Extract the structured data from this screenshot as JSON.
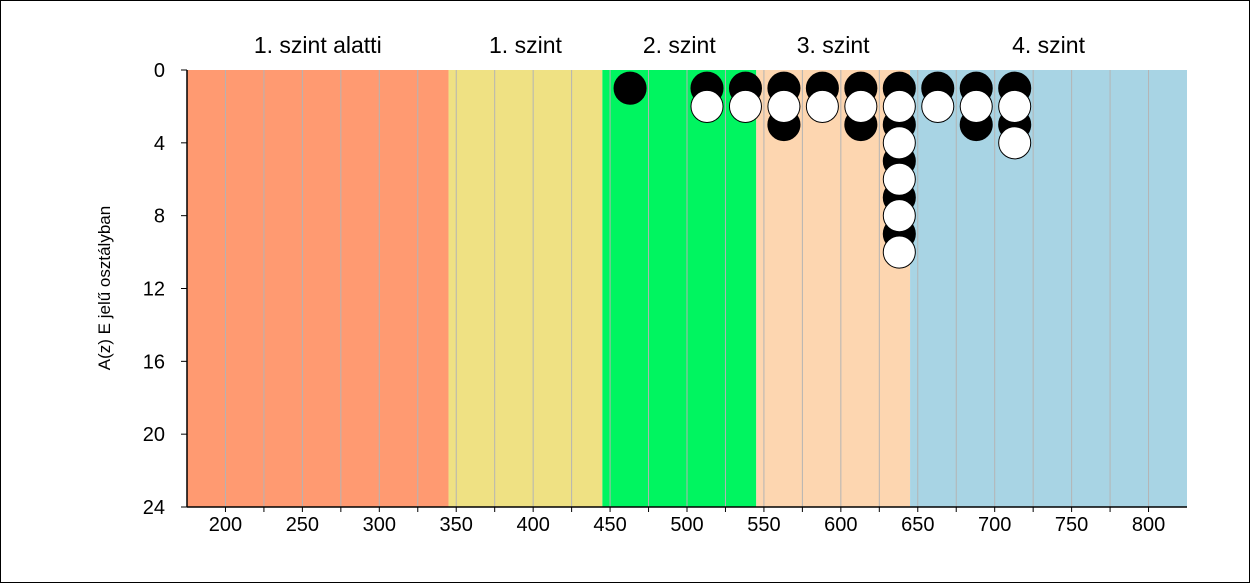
{
  "chart_data": {
    "type": "scatter",
    "title": "",
    "xlabel": "",
    "ylabel": "A(z) E jelű osztályban",
    "xlim": [
      175,
      825
    ],
    "ylim": [
      24,
      0
    ],
    "grid": true,
    "x_ticks": [
      200,
      250,
      300,
      350,
      400,
      450,
      500,
      550,
      600,
      650,
      700,
      750,
      800
    ],
    "y_ticks": [
      0,
      4,
      8,
      12,
      16,
      20,
      24
    ],
    "level_bands": [
      {
        "label": "1. szint alatti",
        "from": 175,
        "to": 345,
        "color": "#ff9a71"
      },
      {
        "label": "1. szint",
        "from": 345,
        "to": 445,
        "color": "#efe183"
      },
      {
        "label": "2. szint",
        "from": 445,
        "to": 545,
        "color": "#00f560"
      },
      {
        "label": "3. szint",
        "from": 545,
        "to": 645,
        "color": "#fdd6b0"
      },
      {
        "label": "4. szint",
        "from": 645,
        "to": 825,
        "color": "#a8d4e4"
      }
    ],
    "series": [
      {
        "color": "#000000",
        "points": [
          {
            "x": 463,
            "y": 1
          },
          {
            "x": 513,
            "y": 1
          },
          {
            "x": 538,
            "y": 1
          },
          {
            "x": 563,
            "y": 1
          },
          {
            "x": 563,
            "y": 3
          },
          {
            "x": 588,
            "y": 1
          },
          {
            "x": 613,
            "y": 1
          },
          {
            "x": 613,
            "y": 3
          },
          {
            "x": 638,
            "y": 1
          },
          {
            "x": 638,
            "y": 3
          },
          {
            "x": 638,
            "y": 5
          },
          {
            "x": 638,
            "y": 7
          },
          {
            "x": 638,
            "y": 9
          },
          {
            "x": 663,
            "y": 1
          },
          {
            "x": 688,
            "y": 1
          },
          {
            "x": 688,
            "y": 3
          },
          {
            "x": 713,
            "y": 1
          },
          {
            "x": 713,
            "y": 3
          }
        ]
      },
      {
        "color": "#ffffff",
        "points": [
          {
            "x": 513,
            "y": 2
          },
          {
            "x": 538,
            "y": 2
          },
          {
            "x": 563,
            "y": 2
          },
          {
            "x": 588,
            "y": 2
          },
          {
            "x": 613,
            "y": 2
          },
          {
            "x": 638,
            "y": 2
          },
          {
            "x": 638,
            "y": 4
          },
          {
            "x": 638,
            "y": 6
          },
          {
            "x": 638,
            "y": 8
          },
          {
            "x": 638,
            "y": 10
          },
          {
            "x": 663,
            "y": 2
          },
          {
            "x": 688,
            "y": 2
          },
          {
            "x": 713,
            "y": 2
          },
          {
            "x": 713,
            "y": 4
          }
        ]
      }
    ]
  }
}
